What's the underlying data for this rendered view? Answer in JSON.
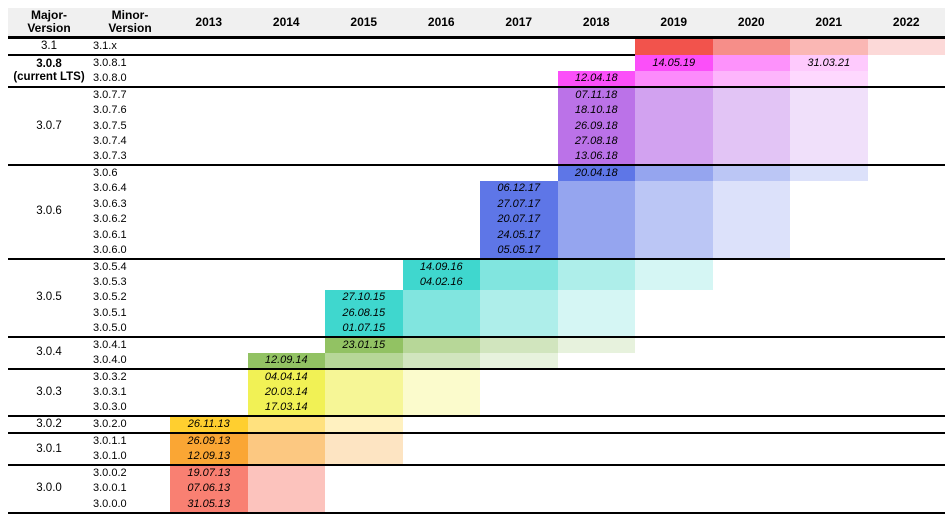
{
  "page": {
    "background": "#ffffff"
  },
  "header": {
    "background": "#f0f0f0",
    "major_label": "Major-\nVersion",
    "minor_label": "Minor-\nVersion",
    "years": [
      "2013",
      "2014",
      "2015",
      "2016",
      "2017",
      "2018",
      "2019",
      "2020",
      "2021",
      "2022"
    ]
  },
  "chart_data": {
    "type": "table",
    "title": "",
    "columns": [
      "Major-Version",
      "Minor-Version",
      "2013",
      "2014",
      "2015",
      "2016",
      "2017",
      "2018",
      "2019",
      "2020",
      "2021",
      "2022"
    ],
    "legend_position": "none",
    "grid": false,
    "fade_alphas": {
      "2": [
        1,
        0.47
      ],
      "3": [
        1,
        0.62,
        0.3
      ],
      "4": [
        1,
        0.66,
        0.42,
        0.22
      ]
    },
    "groups": [
      {
        "major": "3.1",
        "major_lines": [
          "3.1"
        ],
        "bold": false,
        "color": "#f2534c",
        "separator_until_year": 2018,
        "rows": [
          {
            "minor": "3.1.x",
            "dates": [],
            "bar": [
              2019,
              2022
            ],
            "top_edge": true
          }
        ]
      },
      {
        "major": "3.0.8",
        "major_lines": [
          "3.0.8",
          "(current LTS)"
        ],
        "bold": true,
        "color": "#fb4ff9",
        "rows": [
          {
            "minor": "3.0.8.1",
            "dates": [
              {
                "year": 2019,
                "text": "14.05.19"
              },
              {
                "year": 2021,
                "text": "31.03.21"
              }
            ],
            "bar": [
              2019,
              2021
            ]
          },
          {
            "minor": "3.0.8.0",
            "dates": [
              {
                "year": 2018,
                "text": "12.04.18"
              }
            ],
            "bar": [
              2018,
              2021
            ]
          }
        ]
      },
      {
        "major": "3.0.7",
        "major_lines": [
          "3.0.7"
        ],
        "bold": false,
        "color": "#bb72e8",
        "rows": [
          {
            "minor": "3.0.7.7",
            "dates": [
              {
                "year": 2018,
                "text": "07.11.18"
              }
            ],
            "bar": [
              2018,
              2021
            ]
          },
          {
            "minor": "3.0.7.6",
            "dates": [
              {
                "year": 2018,
                "text": "18.10.18"
              }
            ],
            "bar": [
              2018,
              2021
            ]
          },
          {
            "minor": "3.0.7.5",
            "dates": [
              {
                "year": 2018,
                "text": "26.09.18"
              }
            ],
            "bar": [
              2018,
              2021
            ]
          },
          {
            "minor": "3.0.7.4",
            "dates": [
              {
                "year": 2018,
                "text": "27.08.18"
              }
            ],
            "bar": [
              2018,
              2021
            ]
          },
          {
            "minor": "3.0.7.3",
            "dates": [
              {
                "year": 2018,
                "text": "13.06.18"
              }
            ],
            "bar": [
              2018,
              2021
            ]
          }
        ]
      },
      {
        "major": "3.0.6",
        "major_lines": [
          "3.0.6"
        ],
        "bold": false,
        "color": "#5e76e7",
        "rows": [
          {
            "minor": "3.0.6",
            "dates": [
              {
                "year": 2018,
                "text": "20.04.18"
              }
            ],
            "bar": [
              2018,
              2021
            ]
          },
          {
            "minor": "3.0.6.4",
            "dates": [
              {
                "year": 2017,
                "text": "06.12.17"
              }
            ],
            "bar": [
              2017,
              2020
            ]
          },
          {
            "minor": "3.0.6.3",
            "dates": [
              {
                "year": 2017,
                "text": "27.07.17"
              }
            ],
            "bar": [
              2017,
              2020
            ]
          },
          {
            "minor": "3.0.6.2",
            "dates": [
              {
                "year": 2017,
                "text": "20.07.17"
              }
            ],
            "bar": [
              2017,
              2020
            ]
          },
          {
            "minor": "3.0.6.1",
            "dates": [
              {
                "year": 2017,
                "text": "24.05.17"
              }
            ],
            "bar": [
              2017,
              2020
            ]
          },
          {
            "minor": "3.0.6.0",
            "dates": [
              {
                "year": 2017,
                "text": "05.05.17"
              }
            ],
            "bar": [
              2017,
              2020
            ]
          }
        ]
      },
      {
        "major": "3.0.5",
        "major_lines": [
          "3.0.5"
        ],
        "bold": false,
        "color": "#3fd7ce",
        "rows": [
          {
            "minor": "3.0.5.4",
            "dates": [
              {
                "year": 2016,
                "text": "14.09.16"
              }
            ],
            "bar": [
              2016,
              2019
            ]
          },
          {
            "minor": "3.0.5.3",
            "dates": [
              {
                "year": 2016,
                "text": "04.02.16"
              }
            ],
            "bar": [
              2016,
              2019
            ]
          },
          {
            "minor": "3.0.5.2",
            "dates": [
              {
                "year": 2015,
                "text": "27.10.15"
              }
            ],
            "bar": [
              2015,
              2018
            ]
          },
          {
            "minor": "3.0.5.1",
            "dates": [
              {
                "year": 2015,
                "text": "26.08.15"
              }
            ],
            "bar": [
              2015,
              2018
            ]
          },
          {
            "minor": "3.0.5.0",
            "dates": [
              {
                "year": 2015,
                "text": "01.07.15"
              }
            ],
            "bar": [
              2015,
              2018
            ]
          }
        ]
      },
      {
        "major": "3.0.4",
        "major_lines": [
          "3.0.4"
        ],
        "bold": false,
        "color": "#92c263",
        "rows": [
          {
            "minor": "3.0.4.1",
            "dates": [
              {
                "year": 2015,
                "text": "23.01.15"
              }
            ],
            "bar": [
              2015,
              2018
            ]
          },
          {
            "minor": "3.0.4.0",
            "dates": [
              {
                "year": 2014,
                "text": "12.09.14"
              }
            ],
            "bar": [
              2014,
              2017
            ]
          }
        ]
      },
      {
        "major": "3.0.3",
        "major_lines": [
          "3.0.3"
        ],
        "bold": false,
        "color": "#f1f155",
        "rows": [
          {
            "minor": "3.0.3.2",
            "dates": [
              {
                "year": 2014,
                "text": "04.04.14"
              }
            ],
            "bar": [
              2014,
              2016
            ]
          },
          {
            "minor": "3.0.3.1",
            "dates": [
              {
                "year": 2014,
                "text": "20.03.14"
              }
            ],
            "bar": [
              2014,
              2016
            ]
          },
          {
            "minor": "3.0.3.0",
            "dates": [
              {
                "year": 2014,
                "text": "17.03.14"
              }
            ],
            "bar": [
              2014,
              2016
            ]
          }
        ]
      },
      {
        "major": "3.0.2",
        "major_lines": [
          "3.0.2"
        ],
        "bold": false,
        "color": "#ffcf2f",
        "rows": [
          {
            "minor": "3.0.2.0",
            "dates": [
              {
                "year": 2013,
                "text": "26.11.13"
              }
            ],
            "bar": [
              2013,
              2015
            ]
          }
        ]
      },
      {
        "major": "3.0.1",
        "major_lines": [
          "3.0.1"
        ],
        "bold": false,
        "color": "#faa634",
        "rows": [
          {
            "minor": "3.0.1.1",
            "dates": [
              {
                "year": 2013,
                "text": "26.09.13"
              }
            ],
            "bar": [
              2013,
              2015
            ]
          },
          {
            "minor": "3.0.1.0",
            "dates": [
              {
                "year": 2013,
                "text": "12.09.13"
              }
            ],
            "bar": [
              2013,
              2015
            ]
          }
        ]
      },
      {
        "major": "3.0.0",
        "major_lines": [
          "3.0.0"
        ],
        "bold": false,
        "color": "#f98072",
        "rows": [
          {
            "minor": "3.0.0.2",
            "dates": [
              {
                "year": 2013,
                "text": "19.07.13"
              }
            ],
            "bar": [
              2013,
              2014
            ]
          },
          {
            "minor": "3.0.0.1",
            "dates": [
              {
                "year": 2013,
                "text": "07.06.13"
              }
            ],
            "bar": [
              2013,
              2014
            ]
          },
          {
            "minor": "3.0.0.0",
            "dates": [
              {
                "year": 2013,
                "text": "31.05.13"
              }
            ],
            "bar": [
              2013,
              2014
            ]
          }
        ]
      }
    ]
  }
}
